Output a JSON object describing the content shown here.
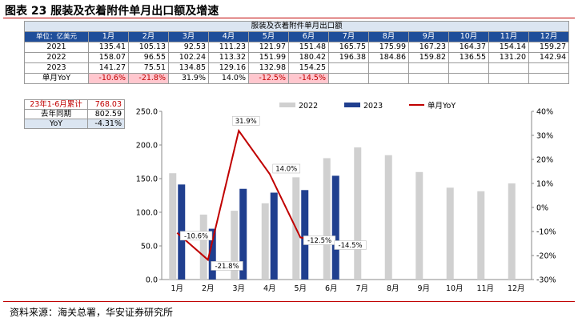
{
  "figure": {
    "title": "图表 23 服装及衣着附件单月出口额及增速",
    "source": "资料来源：海关总署，华安证券研究所"
  },
  "table": {
    "title": "服装及衣着附件单月出口额",
    "unit_label": "单位：亿美元",
    "months": [
      "1月",
      "2月",
      "3月",
      "4月",
      "5月",
      "6月",
      "7月",
      "8月",
      "9月",
      "10月",
      "11月",
      "12月"
    ],
    "rows": [
      {
        "label": "2021",
        "cells": [
          "135.41",
          "105.13",
          "92.53",
          "111.23",
          "121.97",
          "151.48",
          "165.75",
          "175.99",
          "167.23",
          "164.37",
          "154.14",
          "159.27"
        ]
      },
      {
        "label": "2022",
        "cells": [
          "158.07",
          "96.55",
          "102.24",
          "113.32",
          "151.99",
          "180.42",
          "196.38",
          "184.86",
          "159.82",
          "136.55",
          "131.20",
          "142.94"
        ]
      },
      {
        "label": "2023",
        "cells": [
          "141.27",
          "75.51",
          "134.85",
          "129.16",
          "132.98",
          "154.25",
          "",
          "",
          "",
          "",
          "",
          ""
        ]
      },
      {
        "label": "单月YoY",
        "cells": [
          "-10.6%",
          "-21.8%",
          "31.9%",
          "14.0%",
          "-12.5%",
          "-14.5%",
          "",
          "",
          "",
          "",
          "",
          ""
        ]
      }
    ]
  },
  "summary": [
    {
      "label": "23年1-6月累计",
      "value": "768.03"
    },
    {
      "label": "去年同期",
      "value": "802.59"
    },
    {
      "label": "YoY",
      "value": "-4.31%"
    }
  ],
  "colors": {
    "bar_2022": "#d0d0d0",
    "bar_2023": "#203f8f",
    "line_yoy": "#c00000",
    "header_bg": "#1f4e9a",
    "neg_bg": "#ffc7ce"
  },
  "chart_data": {
    "type": "bar",
    "categories": [
      "1月",
      "2月",
      "3月",
      "4月",
      "5月",
      "6月",
      "7月",
      "8月",
      "9月",
      "10月",
      "11月",
      "12月"
    ],
    "series": [
      {
        "name": "2022",
        "kind": "bar",
        "axis": "left",
        "values": [
          158.07,
          96.55,
          102.24,
          113.32,
          151.99,
          180.42,
          196.38,
          184.86,
          159.82,
          136.55,
          131.2,
          142.94
        ]
      },
      {
        "name": "2023",
        "kind": "bar",
        "axis": "left",
        "values": [
          141.27,
          75.51,
          134.85,
          129.16,
          132.98,
          154.25,
          null,
          null,
          null,
          null,
          null,
          null
        ]
      },
      {
        "name": "单月YoY",
        "kind": "line",
        "axis": "right",
        "values": [
          -10.6,
          -21.8,
          31.9,
          14.0,
          -12.5,
          -14.5,
          null,
          null,
          null,
          null,
          null,
          null
        ],
        "data_labels": [
          "-10.6%",
          "-21.8%",
          "31.9%",
          "14.0%",
          "-12.5%",
          "-14.5%"
        ]
      }
    ],
    "ylim": [
      0,
      250
    ],
    "yticks": [
      "0.0",
      "50.0",
      "100.0",
      "150.0",
      "200.0",
      "250.0"
    ],
    "y2lim": [
      -30,
      40
    ],
    "y2ticks": [
      "-30%",
      "-20%",
      "-10%",
      "0%",
      "10%",
      "20%",
      "30%",
      "40%"
    ],
    "legend": "top",
    "grid": false
  }
}
